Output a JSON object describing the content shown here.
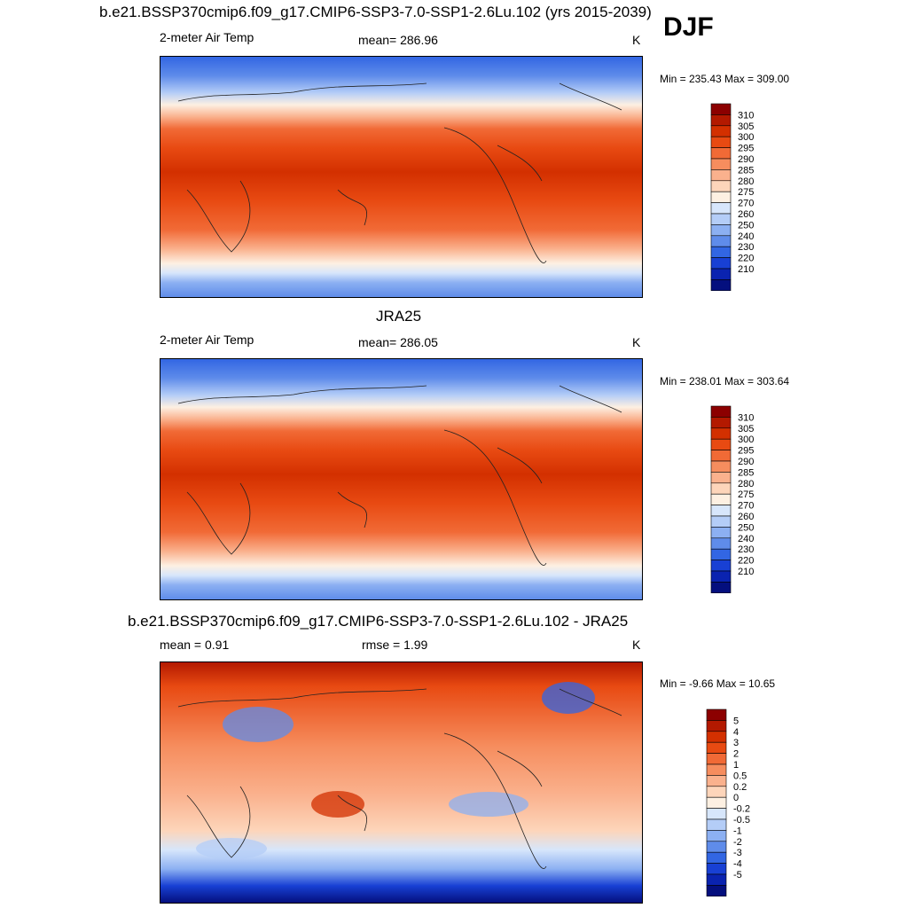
{
  "djf_label": "DJF",
  "chart_data": [
    {
      "type": "heatmap",
      "title": "b.e21.BSSP370cmip6.f09_g17.CMIP6-SSP3-7.0-SSP1-2.6Lu.102 (yrs 2015-2039)",
      "left_label": "2-meter Air Temp",
      "center_label": "mean= 286.96",
      "units": "K",
      "minmax": "Min = 235.43 Max = 309.00",
      "mean": 286.96,
      "min": 235.43,
      "max": 309.0,
      "colorbar": {
        "ticks": [
          "310",
          "305",
          "300",
          "295",
          "290",
          "285",
          "280",
          "275",
          "270",
          "260",
          "250",
          "240",
          "230",
          "220",
          "210"
        ],
        "colors": [
          "#8c0000",
          "#b31900",
          "#d33000",
          "#e84a12",
          "#f16a36",
          "#f68d5e",
          "#fab18d",
          "#fdd5ba",
          "#fdf0e2",
          "#d7e6fb",
          "#b4cdf7",
          "#8cb0f2",
          "#5f8cea",
          "#3266e3",
          "#1840d4",
          "#0a23b0",
          "#040f7e"
        ]
      }
    },
    {
      "type": "heatmap",
      "title": "JRA25",
      "left_label": "2-meter Air Temp",
      "center_label": "mean= 286.05",
      "units": "K",
      "minmax": "Min = 238.01 Max = 303.64",
      "mean": 286.05,
      "min": 238.01,
      "max": 303.64,
      "colorbar": {
        "ticks": [
          "310",
          "305",
          "300",
          "295",
          "290",
          "285",
          "280",
          "275",
          "270",
          "260",
          "250",
          "240",
          "230",
          "220",
          "210"
        ],
        "colors": [
          "#8c0000",
          "#b31900",
          "#d33000",
          "#e84a12",
          "#f16a36",
          "#f68d5e",
          "#fab18d",
          "#fdd5ba",
          "#fdf0e2",
          "#d7e6fb",
          "#b4cdf7",
          "#8cb0f2",
          "#5f8cea",
          "#3266e3",
          "#1840d4",
          "#0a23b0",
          "#040f7e"
        ]
      }
    },
    {
      "type": "heatmap",
      "title": "b.e21.BSSP370cmip6.f09_g17.CMIP6-SSP3-7.0-SSP1-2.6Lu.102 - JRA25",
      "left_label": "mean =   0.91",
      "center_label": "rmse =   1.99",
      "units": "K",
      "minmax": "Min =  -9.66 Max =  10.65",
      "mean": 0.91,
      "rmse": 1.99,
      "min": -9.66,
      "max": 10.65,
      "colorbar": {
        "ticks": [
          "5",
          "4",
          "3",
          "2",
          "1",
          "0.5",
          "0.2",
          "0",
          "-0.2",
          "-0.5",
          "-1",
          "-2",
          "-3",
          "-4",
          "-5"
        ],
        "colors": [
          "#8c0000",
          "#b31900",
          "#d33000",
          "#e84a12",
          "#f16a36",
          "#f68d5e",
          "#fab18d",
          "#fdd5ba",
          "#fdf0e2",
          "#d7e6fb",
          "#b4cdf7",
          "#8cb0f2",
          "#5f8cea",
          "#3266e3",
          "#1840d4",
          "#0a23b0",
          "#040f7e"
        ]
      }
    }
  ]
}
